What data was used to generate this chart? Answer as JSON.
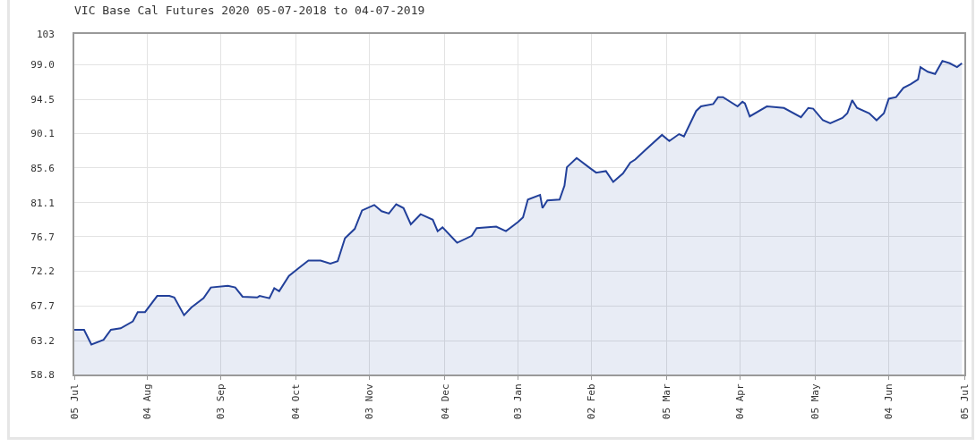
{
  "chart_data": {
    "type": "area",
    "title": "VIC Base Cal Futures 2020 05-07-2018 to 04-07-2019",
    "x": [
      "2018-07-05",
      "2018-07-09",
      "2018-07-12",
      "2018-07-17",
      "2018-07-20",
      "2018-07-24",
      "2018-07-29",
      "2018-07-31",
      "2018-08-03",
      "2018-08-08",
      "2018-08-13",
      "2018-08-15",
      "2018-08-19",
      "2018-08-22",
      "2018-08-27",
      "2018-08-30",
      "2018-09-06",
      "2018-09-09",
      "2018-09-12",
      "2018-09-18",
      "2018-09-19",
      "2018-09-23",
      "2018-09-25",
      "2018-09-27",
      "2018-10-01",
      "2018-10-05",
      "2018-10-09",
      "2018-10-14",
      "2018-10-18",
      "2018-10-21",
      "2018-10-24",
      "2018-10-28",
      "2018-10-31",
      "2018-11-05",
      "2018-11-08",
      "2018-11-11",
      "2018-11-14",
      "2018-11-17",
      "2018-11-20",
      "2018-11-24",
      "2018-11-29",
      "2018-12-01",
      "2018-12-03",
      "2018-12-09",
      "2018-12-15",
      "2018-12-17",
      "2018-12-25",
      "2018-12-29",
      "2019-01-03",
      "2019-01-05",
      "2019-01-07",
      "2019-01-12",
      "2019-01-13",
      "2019-01-15",
      "2019-01-20",
      "2019-01-22",
      "2019-01-23",
      "2019-01-27",
      "2019-02-01",
      "2019-02-04",
      "2019-02-08",
      "2019-02-11",
      "2019-02-15",
      "2019-02-18",
      "2019-02-20",
      "2019-02-24",
      "2019-03-03",
      "2019-03-06",
      "2019-03-10",
      "2019-03-12",
      "2019-03-17",
      "2019-03-19",
      "2019-03-24",
      "2019-03-26",
      "2019-03-28",
      "2019-04-03",
      "2019-04-05",
      "2019-04-06",
      "2019-04-08",
      "2019-04-15",
      "2019-04-22",
      "2019-04-29",
      "2019-05-02",
      "2019-05-04",
      "2019-05-08",
      "2019-05-11",
      "2019-05-16",
      "2019-05-18",
      "2019-05-20",
      "2019-05-22",
      "2019-05-27",
      "2019-05-30",
      "2019-06-02",
      "2019-06-04",
      "2019-06-07",
      "2019-06-10",
      "2019-06-13",
      "2019-06-16",
      "2019-06-17",
      "2019-06-20",
      "2019-06-23",
      "2019-06-26",
      "2019-06-29",
      "2019-07-02",
      "2019-07-04"
    ],
    "series": [
      {
        "color": "#22409a",
        "values": [
          64.6,
          64.6,
          62.7,
          63.3,
          64.6,
          64.8,
          65.7,
          66.9,
          66.9,
          69.0,
          69.0,
          68.8,
          66.5,
          67.5,
          68.7,
          70.1,
          70.3,
          70.1,
          68.9,
          68.8,
          69.0,
          68.7,
          70.0,
          69.6,
          71.6,
          72.6,
          73.6,
          73.6,
          73.2,
          73.5,
          76.5,
          77.7,
          80.1,
          80.8,
          80.0,
          79.7,
          80.9,
          80.4,
          78.3,
          79.6,
          78.9,
          77.4,
          77.9,
          75.9,
          76.8,
          77.8,
          78.0,
          77.4,
          78.6,
          79.2,
          81.5,
          82.1,
          80.4,
          81.4,
          81.5,
          83.3,
          85.7,
          86.9,
          85.7,
          85.0,
          85.2,
          83.8,
          84.9,
          86.3,
          86.7,
          87.9,
          89.9,
          89.1,
          90.0,
          89.7,
          93.0,
          93.6,
          93.9,
          94.8,
          94.8,
          93.6,
          94.2,
          94.0,
          92.3,
          93.6,
          93.4,
          92.2,
          93.4,
          93.3,
          91.8,
          91.4,
          92.1,
          92.7,
          94.4,
          93.4,
          92.7,
          91.8,
          92.7,
          94.6,
          94.8,
          96.0,
          96.5,
          97.1,
          98.7,
          98.1,
          97.8,
          99.5,
          99.2,
          98.7,
          99.2
        ]
      }
    ],
    "xlim": [
      "2018-07-05",
      "2019-07-05"
    ],
    "xticks": [
      {
        "value": "2018-07-05",
        "label": "05 Jul"
      },
      {
        "value": "2018-08-04",
        "label": "04 Aug"
      },
      {
        "value": "2018-09-03",
        "label": "03 Sep"
      },
      {
        "value": "2018-10-04",
        "label": "04 Oct"
      },
      {
        "value": "2018-11-03",
        "label": "03 Nov"
      },
      {
        "value": "2018-12-04",
        "label": "04 Dec"
      },
      {
        "value": "2019-01-03",
        "label": "03 Jan"
      },
      {
        "value": "2019-02-02",
        "label": "02 Feb"
      },
      {
        "value": "2019-03-05",
        "label": "05 Mar"
      },
      {
        "value": "2019-04-04",
        "label": "04 Apr"
      },
      {
        "value": "2019-05-05",
        "label": "05 May"
      },
      {
        "value": "2019-06-04",
        "label": "04 Jun"
      },
      {
        "value": "2019-07-05",
        "label": "05 Jul"
      }
    ],
    "ylim": [
      58.8,
      103
    ],
    "yticks": [
      {
        "value": 58.8,
        "label": "58.8"
      },
      {
        "value": 63.2,
        "label": "63.2"
      },
      {
        "value": 67.7,
        "label": "67.7"
      },
      {
        "value": 72.2,
        "label": "72.2"
      },
      {
        "value": 76.7,
        "label": "76.7"
      },
      {
        "value": 81.1,
        "label": "81.1"
      },
      {
        "value": 85.6,
        "label": "85.6"
      },
      {
        "value": 90.1,
        "label": "90.1"
      },
      {
        "value": 94.5,
        "label": "94.5"
      },
      {
        "value": 99.0,
        "label": "99.0"
      },
      {
        "value": 103,
        "label": "103"
      }
    ],
    "grid": true
  }
}
